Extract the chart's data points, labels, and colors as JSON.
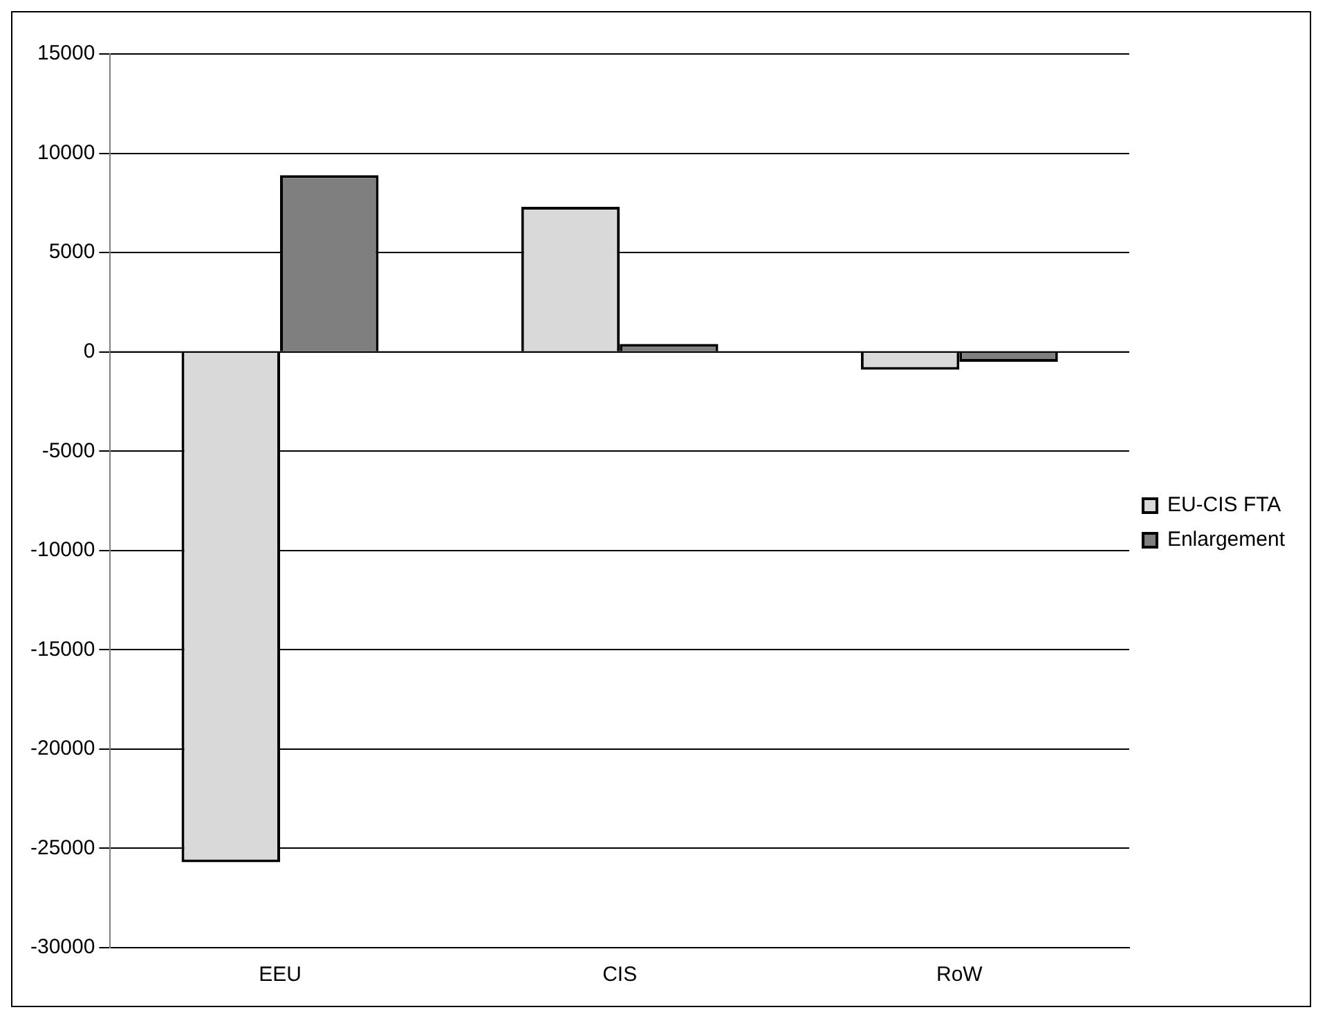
{
  "chart_data": {
    "type": "bar",
    "categories": [
      "EEU",
      "CIS",
      "RoW"
    ],
    "series": [
      {
        "name": "EU-CIS FTA",
        "color": "#d9d9d9",
        "values": [
          -25700,
          7300,
          -900
        ]
      },
      {
        "name": "Enlargement",
        "color": "#7f7f7f",
        "values": [
          8900,
          400,
          -500
        ]
      }
    ],
    "ylim": [
      -30000,
      15000
    ],
    "yticks": [
      -30000,
      -25000,
      -20000,
      -15000,
      -10000,
      -5000,
      0,
      5000,
      10000,
      15000
    ],
    "grid": "y",
    "legend": "right"
  }
}
